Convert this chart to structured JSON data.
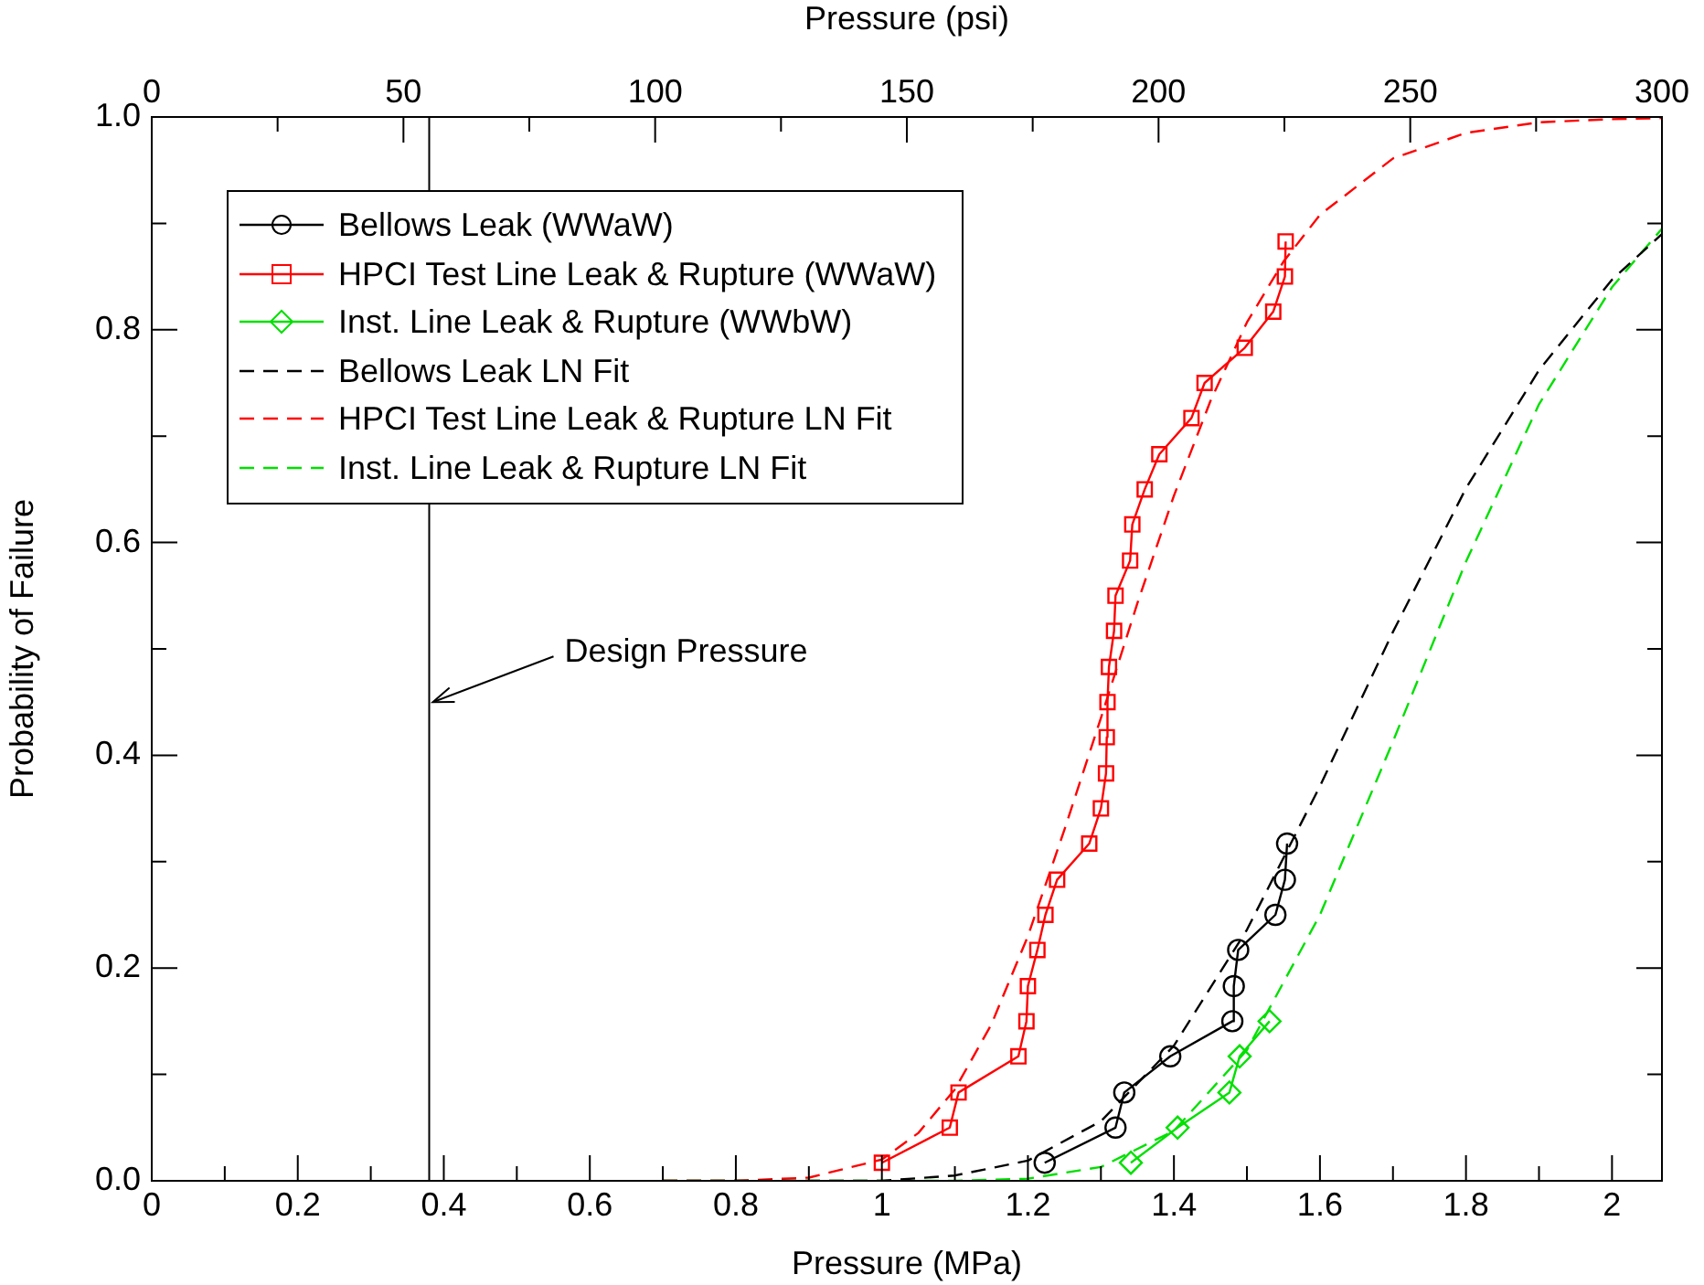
{
  "chart_data": {
    "type": "line",
    "xlabel": "Pressure (MPa)",
    "ylabel": "Probability of Failure",
    "x2label": "Pressure (psi)",
    "xlim": [
      0,
      2.0684
    ],
    "xticks": [
      0,
      {
        "value": 0.1,
        "label": null
      },
      0.2,
      {
        "value": 0.3,
        "label": null
      },
      0.4,
      {
        "value": 0.5,
        "label": null
      },
      0.6,
      {
        "value": 0.7,
        "label": null
      },
      0.8,
      {
        "value": 0.9,
        "label": null
      },
      1,
      {
        "value": 1.1,
        "label": null
      },
      1.2,
      {
        "value": 1.3,
        "label": null
      },
      1.4,
      {
        "value": 1.5,
        "label": null
      },
      1.6,
      {
        "value": 1.7,
        "label": null
      },
      1.8,
      {
        "value": 1.9,
        "label": null
      },
      2
    ],
    "x2lim": [
      0,
      300
    ],
    "x2ticks": [
      0,
      {
        "value": 25,
        "label": null
      },
      50,
      {
        "value": 75,
        "label": null
      },
      100,
      {
        "value": 125,
        "label": null
      },
      150,
      {
        "value": 175,
        "label": null
      },
      200,
      {
        "value": 225,
        "label": null
      },
      250,
      {
        "value": 275,
        "label": null
      },
      300
    ],
    "ylim": [
      0,
      1
    ],
    "yticks": [
      {
        "value": 0,
        "label": "0.0"
      },
      {
        "value": 0.1,
        "label": null
      },
      0.2,
      {
        "value": 0.3,
        "label": null
      },
      0.4,
      {
        "value": 0.5,
        "label": null
      },
      0.6,
      {
        "value": 0.7,
        "label": null
      },
      0.8,
      {
        "value": 0.9,
        "label": null
      },
      {
        "value": 1,
        "label": "1.0"
      }
    ],
    "grid": false,
    "legend": "top left",
    "ref_lines": [
      {
        "axis": "x",
        "value": 0.38,
        "color": "#000000",
        "line_style": "solid"
      }
    ],
    "annotations": [
      {
        "text": "Design Pressure",
        "x": 0.38,
        "y": 0.45
      }
    ],
    "series": [
      {
        "name": "Bellows Leak (WWaW)",
        "color": "#000000",
        "marker": "circle",
        "line_style": "solid",
        "x": [
          1.223,
          1.32,
          1.332,
          1.395,
          1.48,
          1.482,
          1.488,
          1.539,
          1.552,
          1.555
        ],
        "values": [
          0.017,
          0.05,
          0.083,
          0.117,
          0.15,
          0.183,
          0.217,
          0.25,
          0.283,
          0.317
        ]
      },
      {
        "name": "HPCI Test Line Leak & Rupture (WWaW)",
        "color": "#ff0000",
        "marker": "square",
        "line_style": "solid",
        "x": [
          1.0,
          1.093,
          1.105,
          1.187,
          1.198,
          1.2,
          1.213,
          1.224,
          1.24,
          1.284,
          1.3,
          1.307,
          1.308,
          1.309,
          1.311,
          1.318,
          1.32,
          1.34,
          1.343,
          1.36,
          1.38,
          1.424,
          1.442,
          1.497,
          1.536,
          1.552,
          1.553
        ],
        "values": [
          0.017,
          0.05,
          0.083,
          0.117,
          0.15,
          0.183,
          0.217,
          0.25,
          0.283,
          0.317,
          0.35,
          0.383,
          0.417,
          0.45,
          0.483,
          0.517,
          0.55,
          0.583,
          0.617,
          0.65,
          0.683,
          0.717,
          0.75,
          0.783,
          0.817,
          0.85,
          0.883
        ]
      },
      {
        "name": "Inst. Line Leak & Rupture (WWbW)",
        "color": "#00e000",
        "marker": "diamond",
        "line_style": "solid",
        "x": [
          1.341,
          1.405,
          1.476,
          1.49,
          1.531
        ],
        "values": [
          0.017,
          0.05,
          0.083,
          0.117,
          0.15
        ]
      },
      {
        "name": "Bellows Leak LN Fit",
        "color": "#000000",
        "marker": "none",
        "line_style": "dashed",
        "x": [
          0.7,
          1.0,
          1.1,
          1.2,
          1.3,
          1.4,
          1.5,
          1.6,
          1.7,
          1.8,
          1.9,
          2.0,
          2.0684
        ],
        "values": [
          0,
          0,
          0.005,
          0.019,
          0.056,
          0.127,
          0.236,
          0.371,
          0.516,
          0.651,
          0.762,
          0.847,
          0.89
        ]
      },
      {
        "name": "HPCI Test Line Leak & Rupture LN Fit",
        "color": "#ff0000",
        "marker": "none",
        "line_style": "dashed",
        "x": [
          0.7,
          0.8,
          0.9,
          1.0,
          1.05,
          1.1,
          1.15,
          1.2,
          1.25,
          1.3,
          1.35,
          1.4,
          1.45,
          1.5,
          1.55,
          1.6,
          1.7,
          1.8,
          1.9,
          2.0,
          2.0684
        ],
        "values": [
          0,
          0,
          0.003,
          0.02,
          0.045,
          0.086,
          0.147,
          0.23,
          0.33,
          0.435,
          0.543,
          0.644,
          0.733,
          0.807,
          0.864,
          0.908,
          0.961,
          0.985,
          0.995,
          0.998,
          0.999
        ]
      },
      {
        "name": "Inst. Line Leak & Rupture LN Fit",
        "color": "#00e000",
        "marker": "none",
        "line_style": "dashed",
        "x": [
          0.7,
          1.1,
          1.2,
          1.3,
          1.4,
          1.5,
          1.6,
          1.7,
          1.8,
          1.9,
          2.0,
          2.0684
        ],
        "values": [
          0,
          0,
          0.002,
          0.013,
          0.047,
          0.123,
          0.25,
          0.413,
          0.582,
          0.73,
          0.84,
          0.895
        ]
      }
    ]
  }
}
